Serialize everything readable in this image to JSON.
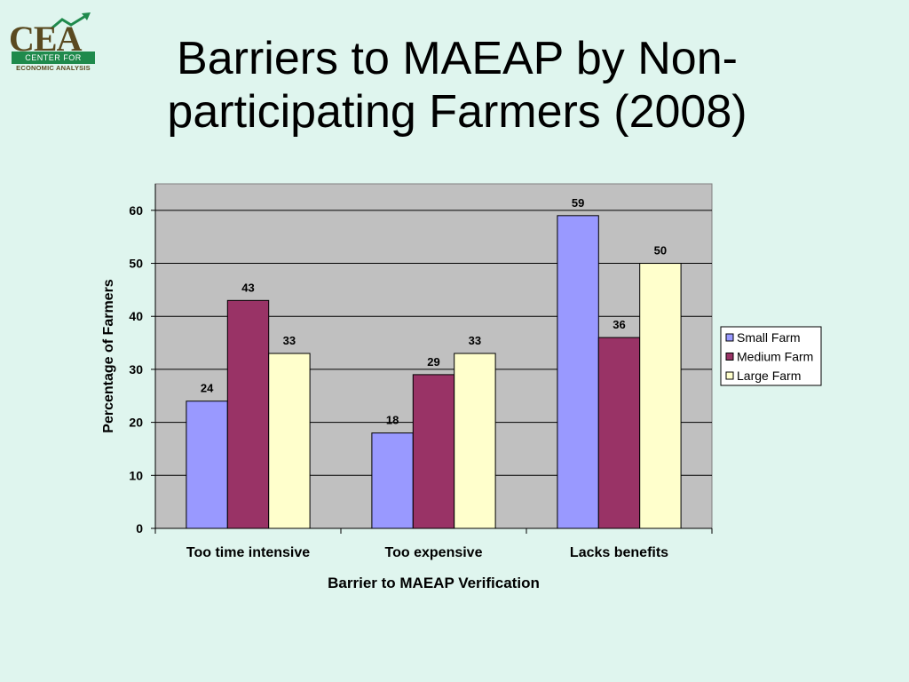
{
  "logo": {
    "word": "CEA",
    "band_text": "CENTER FOR",
    "sub_text": "ECONOMIC ANALYSIS"
  },
  "slide": {
    "title_line1": "Barriers to MAEAP by Non-",
    "title_line2": "participating Farmers (2008)"
  },
  "colors": {
    "background": "#dff5ee",
    "plot_area": "#c0c0c0",
    "logo_green": "#1f8a4c",
    "logo_brown": "#5a4a20"
  },
  "chart_data": {
    "type": "bar",
    "title": "",
    "xlabel": "Barrier to MAEAP Verification",
    "ylabel": "Percentage of Farmers",
    "categories": [
      "Too time intensive",
      "Too expensive",
      "Lacks benefits"
    ],
    "series": [
      {
        "name": "Small Farm",
        "color": "#9999ff",
        "values": [
          24,
          18,
          59
        ]
      },
      {
        "name": "Medium Farm",
        "color": "#993366",
        "values": [
          43,
          29,
          36
        ]
      },
      {
        "name": "Large Farm",
        "color": "#ffffcc",
        "values": [
          33,
          33,
          50
        ]
      }
    ],
    "ylim": [
      0,
      65
    ],
    "yticks": [
      0,
      10,
      20,
      30,
      40,
      50,
      60
    ],
    "grid": true,
    "legend_position": "right",
    "data_labels": true
  }
}
